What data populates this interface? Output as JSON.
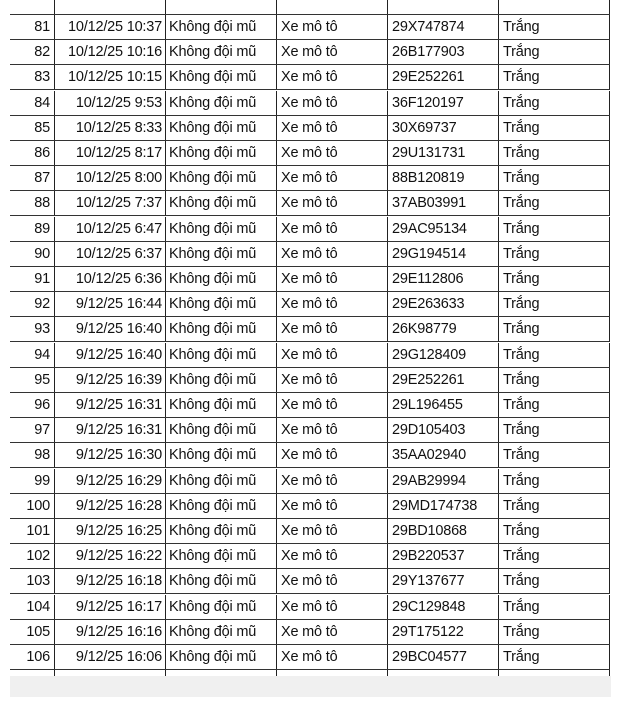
{
  "rows": [
    [
      "81",
      "10/12/25 10:37",
      "Không đội mũ",
      "Xe mô tô",
      "29X747874",
      "Trắng"
    ],
    [
      "82",
      "10/12/25 10:16",
      "Không đội mũ",
      "Xe mô tô",
      "26B177903",
      "Trắng"
    ],
    [
      "83",
      "10/12/25 10:15",
      "Không đội mũ",
      "Xe mô tô",
      "29E252261",
      "Trắng"
    ],
    [
      "84",
      "10/12/25 9:53",
      "Không đội mũ",
      "Xe mô tô",
      "36F120197",
      "Trắng"
    ],
    [
      "85",
      "10/12/25 8:33",
      "Không đội mũ",
      "Xe mô tô",
      "30X69737",
      "Trắng"
    ],
    [
      "86",
      "10/12/25 8:17",
      "Không đội mũ",
      "Xe mô tô",
      "29U131731",
      "Trắng"
    ],
    [
      "87",
      "10/12/25 8:00",
      "Không đội mũ",
      "Xe mô tô",
      "88B120819",
      "Trắng"
    ],
    [
      "88",
      "10/12/25 7:37",
      "Không đội mũ",
      "Xe mô tô",
      "37AB03991",
      "Trắng"
    ],
    [
      "89",
      "10/12/25 6:47",
      "Không đội mũ",
      "Xe mô tô",
      "29AC95134",
      "Trắng"
    ],
    [
      "90",
      "10/12/25 6:37",
      "Không đội mũ",
      "Xe mô tô",
      "29G194514",
      "Trắng"
    ],
    [
      "91",
      "10/12/25 6:36",
      "Không đội mũ",
      "Xe mô tô",
      "29E112806",
      "Trắng"
    ],
    [
      "92",
      "9/12/25 16:44",
      "Không đội mũ",
      "Xe mô tô",
      "29E263633",
      "Trắng"
    ],
    [
      "93",
      "9/12/25 16:40",
      "Không đội mũ",
      "Xe mô tô",
      "26K98779",
      "Trắng"
    ],
    [
      "94",
      "9/12/25 16:40",
      "Không đội mũ",
      "Xe mô tô",
      "29G128409",
      "Trắng"
    ],
    [
      "95",
      "9/12/25 16:39",
      "Không đội mũ",
      "Xe mô tô",
      "29E252261",
      "Trắng"
    ],
    [
      "96",
      "9/12/25 16:31",
      "Không đội mũ",
      "Xe mô tô",
      "29L196455",
      "Trắng"
    ],
    [
      "97",
      "9/12/25 16:31",
      "Không đội mũ",
      "Xe mô tô",
      "29D105403",
      "Trắng"
    ],
    [
      "98",
      "9/12/25 16:30",
      "Không đội mũ",
      "Xe mô tô",
      "35AA02940",
      "Trắng"
    ],
    [
      "99",
      "9/12/25 16:29",
      "Không đội mũ",
      "Xe mô tô",
      "29AB29994",
      "Trắng"
    ],
    [
      "100",
      "9/12/25 16:28",
      "Không đội mũ",
      "Xe mô tô",
      "29MD174738",
      "Trắng"
    ],
    [
      "101",
      "9/12/25 16:25",
      "Không đội mũ",
      "Xe mô tô",
      "29BD10868",
      "Trắng"
    ],
    [
      "102",
      "9/12/25 16:22",
      "Không đội mũ",
      "Xe mô tô",
      "29B220537",
      "Trắng"
    ],
    [
      "103",
      "9/12/25 16:18",
      "Không đội mũ",
      "Xe mô tô",
      "29Y137677",
      "Trắng"
    ],
    [
      "104",
      "9/12/25 16:17",
      "Không đội mũ",
      "Xe mô tô",
      "29C129848",
      "Trắng"
    ],
    [
      "105",
      "9/12/25 16:16",
      "Không đội mũ",
      "Xe mô tô",
      "29T175122",
      "Trắng"
    ],
    [
      "106",
      "9/12/25 16:06",
      "Không đội mũ",
      "Xe mô tô",
      "29BC04577",
      "Trắng"
    ]
  ]
}
